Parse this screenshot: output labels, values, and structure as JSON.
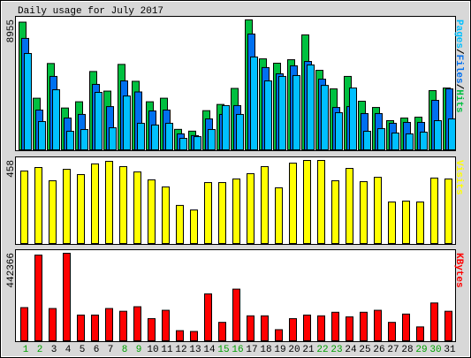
{
  "chart_data": {
    "type": "bar",
    "title": "Daily usage for July 2017",
    "legend_separator": "/",
    "categories": [
      "1",
      "2",
      "3",
      "4",
      "5",
      "6",
      "7",
      "8",
      "9",
      "10",
      "11",
      "12",
      "13",
      "14",
      "15",
      "16",
      "17",
      "18",
      "19",
      "20",
      "21",
      "22",
      "23",
      "24",
      "25",
      "26",
      "27",
      "28",
      "29",
      "30",
      "31"
    ],
    "category_colors": [
      "#00a000",
      "#00a000",
      "#000000",
      "#000000",
      "#000000",
      "#000000",
      "#000000",
      "#00a000",
      "#00a000",
      "#000000",
      "#000000",
      "#000000",
      "#000000",
      "#000000",
      "#00a000",
      "#00a000",
      "#000000",
      "#000000",
      "#000000",
      "#000000",
      "#000000",
      "#00a000",
      "#00a000",
      "#000000",
      "#000000",
      "#000000",
      "#000000",
      "#000000",
      "#00a000",
      "#00a000",
      "#000000"
    ],
    "panels": [
      {
        "ylim": [
          0,
          8955
        ],
        "yticks": [
          8955
        ],
        "legend_order": [
          2,
          1,
          0
        ],
        "series": [
          {
            "name": "Hits",
            "color": "#00c040",
            "values": [
              8800,
              3557,
              5950,
              2883,
              3312,
              5398,
              4048,
              5888,
              4723,
              3312,
              3557,
              1411,
              1288,
              2699,
              3128,
              4232,
              8955,
              6270,
              5970,
              6210,
              7920,
              5480,
              4200,
              5060,
              3350,
              2920,
              2010,
              2190,
              2250,
              4080,
              4260
            ]
          },
          {
            "name": "Files",
            "color": "#0070f0",
            "values": [
              7680,
              2740,
              5060,
              2190,
              2440,
              4510,
              2980,
              4750,
              3990,
              2680,
              2740,
              1100,
              980,
              2130,
              2440,
              3050,
              7980,
              5670,
              5240,
              5790,
              6090,
              4870,
              2920,
              2980,
              2500,
              2500,
              1830,
              1890,
              1890,
              3410,
              4200
            ]
          },
          {
            "name": "Pages",
            "color": "#00c0ff",
            "values": [
              6640,
              1950,
              4140,
              1280,
              1400,
              3960,
              1520,
              3710,
              1830,
              1710,
              1830,
              790,
              910,
              1400,
              3050,
              2440,
              6400,
              4750,
              5060,
              5120,
              5850,
              4440,
              2560,
              4260,
              1280,
              1460,
              1160,
              1100,
              1220,
              2010,
              2130
            ]
          }
        ]
      },
      {
        "ylim": [
          0,
          458
        ],
        "yticks": [
          458
        ],
        "series": [
          {
            "name": "Visits",
            "color": "#ffff00",
            "values": [
              400,
              419,
              346,
              409,
              380,
              439,
              453,
              424,
              395,
              351,
              312,
              210,
              185,
              336,
              336,
              356,
              385,
              424,
              307,
              443,
              458,
              458,
              346,
              414,
              341,
              365,
              229,
              234,
              229,
              361,
              356
            ]
          }
        ]
      },
      {
        "ylim": [
          0,
          442366
        ],
        "yticks": [
          442366
        ],
        "series": [
          {
            "name": "KBytes",
            "color": "#ff0000",
            "values": [
              167600,
              433000,
              163000,
              442366,
              130000,
              130000,
              163000,
              149000,
              172000,
              112000,
              154000,
              51000,
              47000,
              237000,
              93000,
              261000,
              126000,
              126000,
              56000,
              112000,
              130000,
              126000,
              144000,
              121000,
              144000,
              154000,
              93000,
              135000,
              70000,
              191000,
              149000
            ]
          }
        ]
      }
    ]
  }
}
